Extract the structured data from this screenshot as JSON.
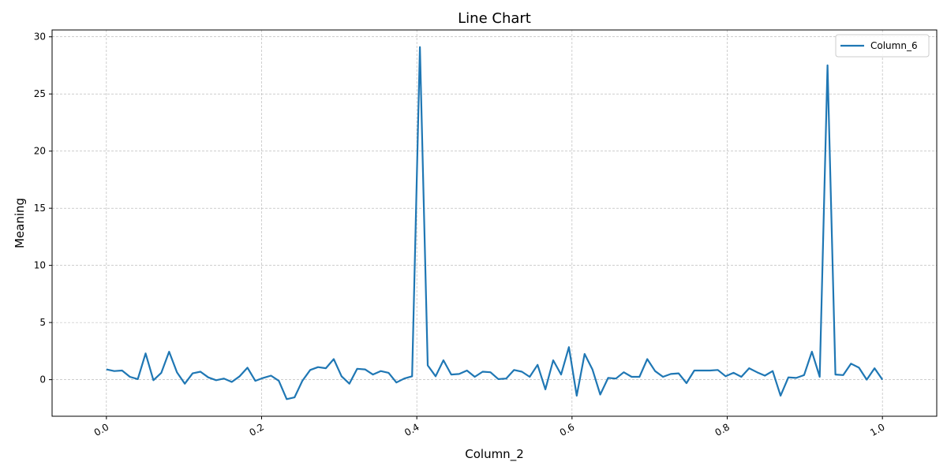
{
  "chart_data": {
    "type": "line",
    "title": "Line Chart",
    "xlabel": "Column_2",
    "ylabel": "Meaning",
    "xlim": [
      -0.07,
      1.07
    ],
    "ylim": [
      -3.2,
      30.6
    ],
    "xticks": [
      0.0,
      0.2,
      0.4,
      0.6,
      0.8,
      1.0
    ],
    "xtick_labels": [
      "0.0",
      "0.2",
      "0.4",
      "0.6",
      "0.8",
      "1.0"
    ],
    "yticks": [
      0,
      5,
      10,
      15,
      20,
      25,
      30
    ],
    "ytick_labels": [
      "0",
      "5",
      "10",
      "15",
      "20",
      "25",
      "30"
    ],
    "grid": true,
    "legend_position": "top-right",
    "series": [
      {
        "name": "Column_6",
        "color": "#1f77b4",
        "x": [
          0.0,
          0.0101,
          0.0202,
          0.0303,
          0.0404,
          0.0505,
          0.0606,
          0.0707,
          0.0808,
          0.0909,
          0.101,
          0.1111,
          0.1212,
          0.1313,
          0.1414,
          0.1515,
          0.1616,
          0.1717,
          0.1818,
          0.1919,
          0.202,
          0.2121,
          0.2222,
          0.2323,
          0.2424,
          0.2525,
          0.2626,
          0.2727,
          0.2828,
          0.2929,
          0.303,
          0.3131,
          0.3232,
          0.3333,
          0.3434,
          0.3535,
          0.3636,
          0.3737,
          0.3838,
          0.3939,
          0.404,
          0.4141,
          0.4242,
          0.4343,
          0.4444,
          0.4545,
          0.4646,
          0.4747,
          0.4848,
          0.4949,
          0.5051,
          0.5152,
          0.5253,
          0.5354,
          0.5455,
          0.5556,
          0.5657,
          0.5758,
          0.5859,
          0.596,
          0.6061,
          0.6162,
          0.6263,
          0.6364,
          0.6465,
          0.6566,
          0.6667,
          0.6768,
          0.6869,
          0.697,
          0.7071,
          0.7172,
          0.7273,
          0.7374,
          0.7475,
          0.7576,
          0.7677,
          0.7778,
          0.7879,
          0.798,
          0.8081,
          0.8182,
          0.8283,
          0.8384,
          0.8485,
          0.8586,
          0.8687,
          0.8788,
          0.8889,
          0.899,
          0.9091,
          0.9192,
          0.9293,
          0.9394,
          0.9495,
          0.9596,
          0.9697,
          0.9798,
          0.9899,
          1.0
        ],
        "values": [
          0.9,
          0.75,
          0.8,
          0.25,
          0.05,
          2.3,
          -0.05,
          0.6,
          2.45,
          0.65,
          -0.35,
          0.55,
          0.7,
          0.2,
          -0.05,
          0.1,
          -0.2,
          0.3,
          1.05,
          -0.1,
          0.15,
          0.35,
          -0.1,
          -1.7,
          -1.55,
          -0.1,
          0.85,
          1.1,
          1.0,
          1.8,
          0.3,
          -0.35,
          0.95,
          0.9,
          0.45,
          0.75,
          0.6,
          -0.25,
          0.1,
          0.3,
          29.1,
          1.25,
          0.3,
          1.7,
          0.45,
          0.5,
          0.8,
          0.25,
          0.7,
          0.65,
          0.05,
          0.1,
          0.85,
          0.7,
          0.25,
          1.3,
          -0.85,
          1.7,
          0.45,
          2.85,
          -1.4,
          2.25,
          0.9,
          -1.3,
          0.15,
          0.1,
          0.65,
          0.25,
          0.25,
          1.8,
          0.75,
          0.25,
          0.5,
          0.55,
          -0.3,
          0.8,
          0.8,
          0.8,
          0.85,
          0.3,
          0.6,
          0.25,
          1.0,
          0.65,
          0.35,
          0.75,
          -1.4,
          0.2,
          0.15,
          0.4,
          2.45,
          0.25,
          27.5,
          0.45,
          0.4,
          1.4,
          1.05,
          0.0,
          1.0,
          0.0
        ]
      }
    ]
  }
}
